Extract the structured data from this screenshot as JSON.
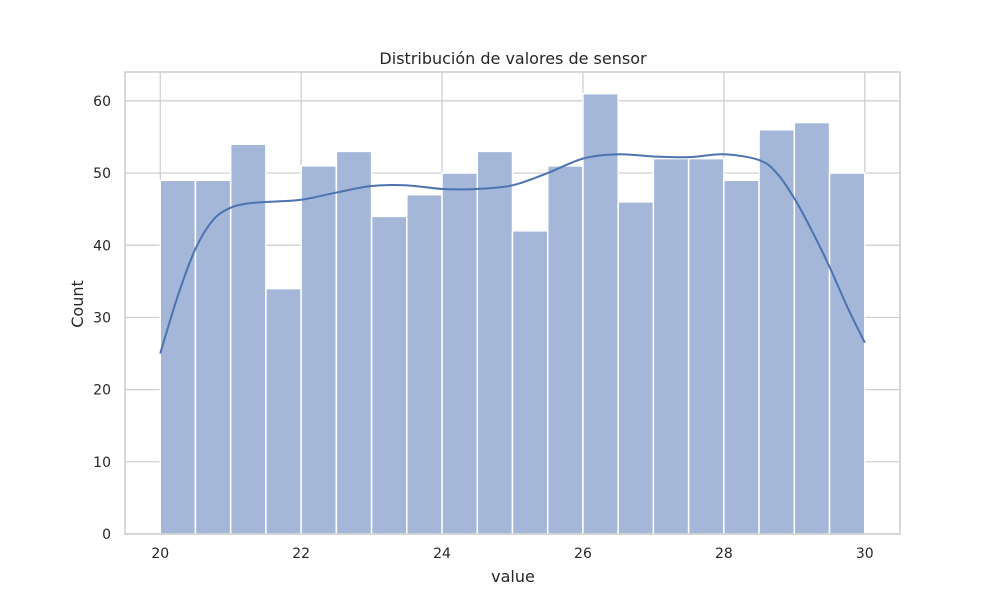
{
  "chart_data": {
    "type": "bar",
    "subtype": "histogram-with-kde",
    "title": "Distribución de valores de sensor",
    "xlabel": "value",
    "ylabel": "Count",
    "xlim": [
      19.5,
      30.5
    ],
    "ylim": [
      0,
      64
    ],
    "x_ticks": [
      20,
      22,
      24,
      26,
      28,
      30
    ],
    "y_ticks": [
      0,
      10,
      20,
      30,
      40,
      50,
      60
    ],
    "grid": true,
    "bin_edges": [
      20.0,
      20.5,
      21.0,
      21.5,
      22.0,
      22.5,
      23.0,
      23.5,
      24.0,
      24.5,
      25.0,
      25.5,
      26.0,
      26.5,
      27.0,
      27.5,
      28.0,
      28.5,
      29.0,
      29.5,
      30.0
    ],
    "counts": [
      49,
      49,
      54,
      34,
      51,
      53,
      44,
      47,
      50,
      53,
      42,
      51,
      61,
      46,
      52,
      52,
      49,
      56,
      57,
      50
    ],
    "kde": {
      "x": [
        20.0,
        20.25,
        20.5,
        20.75,
        21.0,
        21.25,
        21.5,
        22.0,
        22.5,
        23.0,
        23.5,
        24.0,
        24.5,
        25.0,
        25.5,
        26.0,
        26.5,
        27.0,
        27.5,
        28.0,
        28.5,
        28.75,
        29.0,
        29.25,
        29.5,
        29.75,
        30.0
      ],
      "y": [
        25.0,
        33.0,
        39.5,
        43.5,
        45.2,
        45.8,
        46.0,
        46.3,
        47.3,
        48.2,
        48.3,
        47.8,
        47.8,
        48.3,
        50.0,
        52.0,
        52.6,
        52.3,
        52.2,
        52.6,
        51.8,
        50.0,
        46.5,
        42.0,
        37.0,
        31.5,
        26.5
      ]
    },
    "colors": {
      "bar": "#a4b7d8",
      "bar_edge": "#ffffff",
      "kde_line": "#4c72b0",
      "grid": "#cccccc",
      "axes_edge": "#cccccc",
      "text": "#262626"
    }
  }
}
